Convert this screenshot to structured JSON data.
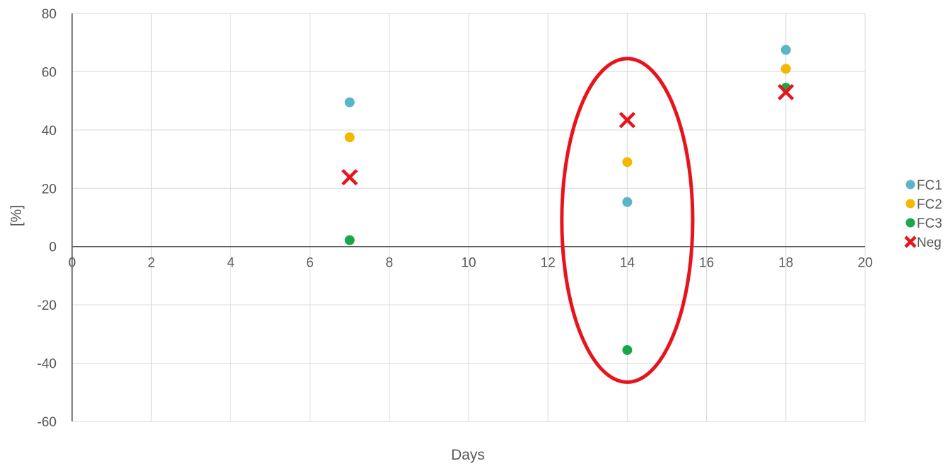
{
  "chart_data": {
    "type": "scatter",
    "title": "",
    "xlabel": "Days",
    "ylabel": "[%]",
    "xlim": [
      0,
      20
    ],
    "ylim": [
      -60,
      80
    ],
    "x_ticks": [
      0,
      2,
      4,
      6,
      8,
      10,
      12,
      14,
      16,
      18,
      20
    ],
    "y_ticks": [
      -60,
      -40,
      -20,
      0,
      20,
      40,
      60,
      80
    ],
    "grid": true,
    "legend_position": "right",
    "series": [
      {
        "name": "FC1",
        "marker": "circle",
        "color": "#5BB5C9",
        "x": [
          7,
          14,
          18
        ],
        "y": [
          49.5,
          15.3,
          67.5
        ]
      },
      {
        "name": "FC2",
        "marker": "circle",
        "color": "#F5B800",
        "x": [
          7,
          14,
          18
        ],
        "y": [
          37.5,
          29,
          61
        ]
      },
      {
        "name": "FC3",
        "marker": "circle",
        "color": "#18A84B",
        "x": [
          7,
          14,
          18
        ],
        "y": [
          2.2,
          -35.5,
          54.5
        ]
      },
      {
        "name": "Neg",
        "marker": "cross",
        "color": "#E8141B",
        "x": [
          7,
          14,
          18
        ],
        "y": [
          23.8,
          43.4,
          53
        ]
      }
    ],
    "annotations": [
      {
        "type": "ellipse",
        "color": "#E8141B",
        "center_x": 14,
        "center_y": 9,
        "half_width": 1.65,
        "half_height": 55.5
      }
    ]
  }
}
